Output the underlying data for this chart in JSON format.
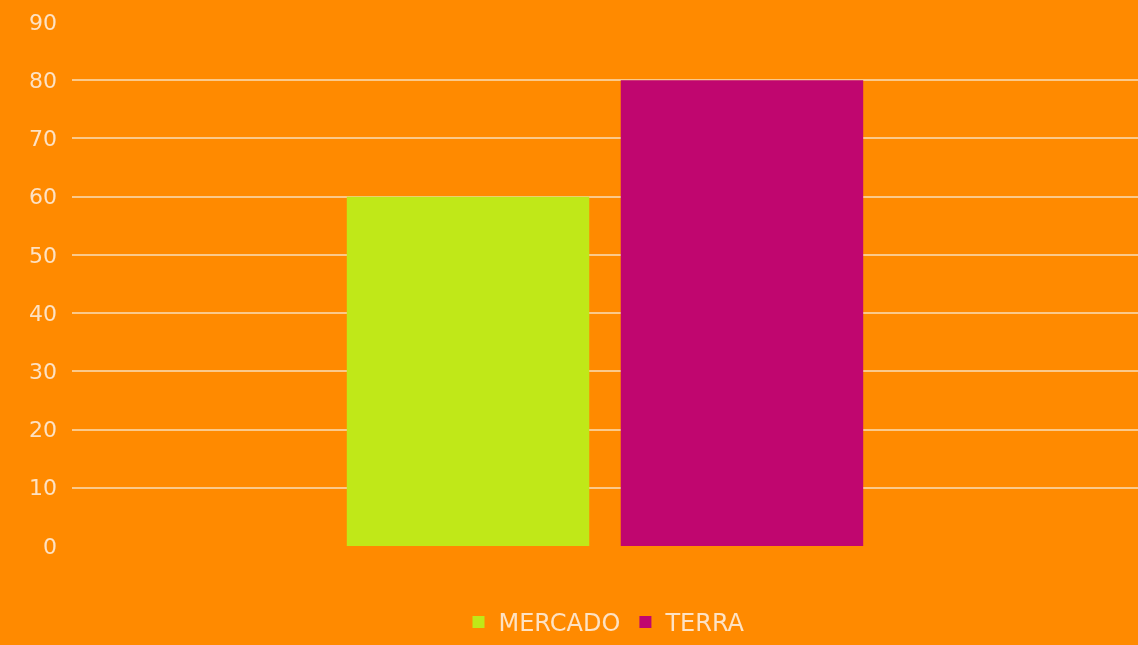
{
  "chart_data": {
    "type": "bar",
    "categories": [
      null
    ],
    "series": [
      {
        "name": "MERCADO",
        "color": "#c0e818",
        "values": [
          60
        ]
      },
      {
        "name": "TERRA",
        "color": "#c0066f",
        "values": [
          80
        ]
      }
    ],
    "ylim": [
      0,
      90
    ],
    "yticks": [
      0,
      10,
      20,
      30,
      40,
      50,
      60,
      70,
      80,
      90
    ],
    "grid": "y",
    "legend": "bottom",
    "tick_labels": "y"
  }
}
